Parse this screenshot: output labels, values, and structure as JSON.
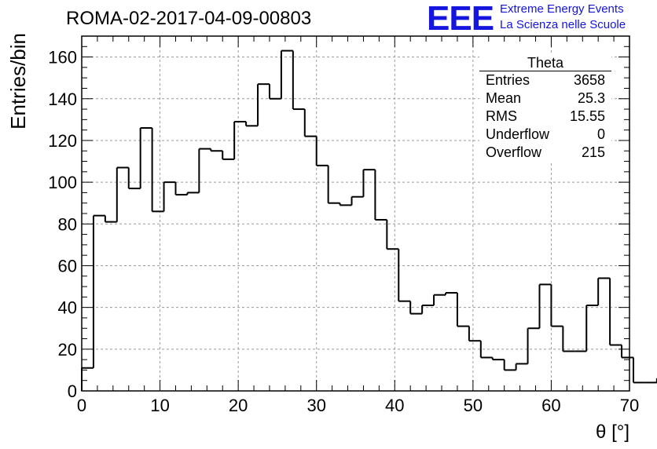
{
  "header": {
    "title": "ROMA-02-2017-04-09-00803"
  },
  "logo": {
    "mark": "EEE",
    "line1": "Extreme Energy Events",
    "line2": "La Scienza nelle Scuole",
    "color": "#1515e0"
  },
  "stats_box": {
    "name": "Theta",
    "rows": [
      {
        "label": "Entries",
        "value": "3658"
      },
      {
        "label": "Mean",
        "value": "25.3"
      },
      {
        "label": "RMS",
        "value": "15.55"
      },
      {
        "label": "Underflow",
        "value": "0"
      },
      {
        "label": "Overflow",
        "value": "215"
      }
    ]
  },
  "chart_data": {
    "type": "bar",
    "style": "step-histogram",
    "xlabel": "θ [°]",
    "ylabel": "Entries/bin",
    "xlim": [
      0,
      70
    ],
    "ylim": [
      0,
      170
    ],
    "xticks": [
      "0",
      "10",
      "20",
      "30",
      "40",
      "50",
      "60",
      "70"
    ],
    "yticks": [
      "0",
      "20",
      "40",
      "60",
      "80",
      "100",
      "120",
      "140",
      "160"
    ],
    "grid": true,
    "bin_width": 1.5,
    "bin_edges_start": 0,
    "values": [
      11,
      84,
      81,
      107,
      97,
      126,
      86,
      100,
      94,
      95,
      116,
      115,
      111,
      129,
      127,
      147,
      140,
      163,
      135,
      122,
      108,
      90,
      89,
      93,
      106,
      82,
      68,
      43,
      37,
      41,
      46,
      47,
      31,
      24,
      16,
      15,
      10,
      13,
      30,
      51,
      31,
      19,
      19,
      41,
      54,
      22,
      16,
      4,
      4,
      6
    ]
  }
}
